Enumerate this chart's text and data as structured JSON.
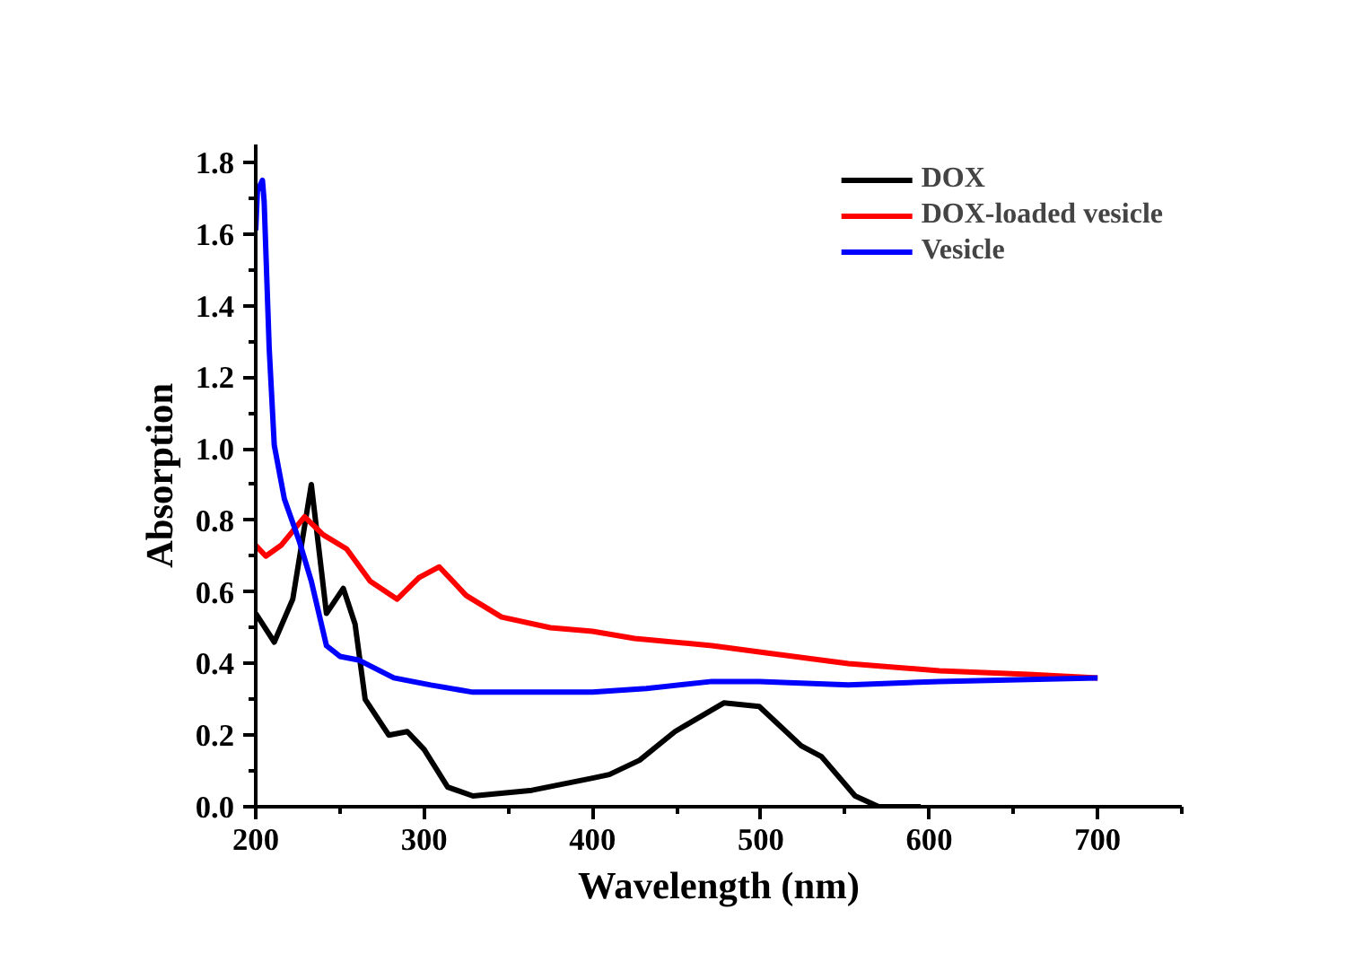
{
  "chart_data": {
    "type": "line",
    "xlabel": "Wavelength (nm)",
    "ylabel": "Absorption",
    "xlim": [
      200,
      750
    ],
    "ylim": [
      0,
      1.85
    ],
    "xticks": [
      200,
      {
        "value": 250,
        "label": null
      },
      300,
      {
        "value": 350,
        "label": null
      },
      400,
      {
        "value": 450,
        "label": null
      },
      500,
      {
        "value": 550,
        "label": null
      },
      600,
      {
        "value": 650,
        "label": null
      },
      700,
      {
        "value": 750,
        "label": null
      }
    ],
    "yticks": [
      {
        "value": 0,
        "label": "0.0"
      },
      {
        "value": 0.1,
        "label": null
      },
      0.2,
      {
        "value": 0.3,
        "label": null
      },
      0.4,
      {
        "value": 0.5,
        "label": null
      },
      0.6,
      {
        "value": 0.7,
        "label": null
      },
      0.8,
      {
        "value": 0.9,
        "label": null
      },
      {
        "value": 1.0,
        "label": "1.0"
      },
      {
        "value": 1.1,
        "label": null
      },
      1.2,
      {
        "value": 1.3,
        "label": null
      },
      1.4,
      {
        "value": 1.5,
        "label": null
      },
      1.6,
      {
        "value": 1.7,
        "label": null
      },
      1.8
    ],
    "legend": "top right",
    "marker": "none",
    "line_style": "solid",
    "series": [
      {
        "name": "DOX",
        "color": "#000000",
        "x": [
          200,
          211,
          222,
          233,
          242,
          252,
          259,
          265,
          279,
          290,
          300,
          314,
          329,
          364,
          400,
          410,
          428,
          449,
          478,
          499,
          524,
          536,
          556,
          570,
          595
        ],
        "values": [
          0.54,
          0.46,
          0.58,
          0.9,
          0.54,
          0.61,
          0.51,
          0.3,
          0.2,
          0.21,
          0.16,
          0.055,
          0.03,
          0.046,
          0.08,
          0.09,
          0.13,
          0.21,
          0.29,
          0.28,
          0.17,
          0.14,
          0.03,
          0,
          0
        ]
      },
      {
        "name": "DOX-loaded vesicle",
        "color": "#ff0000",
        "x": [
          200,
          206,
          215,
          229,
          240,
          254,
          268,
          284,
          297,
          309,
          325,
          346,
          375,
          400,
          425,
          471,
          503,
          552,
          606,
          659,
          700
        ],
        "values": [
          0.73,
          0.7,
          0.73,
          0.81,
          0.76,
          0.72,
          0.63,
          0.58,
          0.64,
          0.67,
          0.59,
          0.53,
          0.5,
          0.49,
          0.47,
          0.45,
          0.43,
          0.4,
          0.38,
          0.37,
          0.36
        ]
      },
      {
        "name": "Vesicle",
        "color": "#0000ff",
        "x": [
          200,
          201,
          204,
          205,
          208,
          211,
          217,
          226,
          233,
          242,
          250,
          261,
          282,
          304,
          329,
          364,
          400,
          432,
          471,
          499,
          552,
          606,
          700
        ],
        "values": [
          1.61,
          1.72,
          1.75,
          1.69,
          1.28,
          1.01,
          0.86,
          0.74,
          0.63,
          0.45,
          0.42,
          0.41,
          0.36,
          0.34,
          0.32,
          0.32,
          0.32,
          0.33,
          0.35,
          0.35,
          0.34,
          0.35,
          0.36
        ]
      }
    ]
  }
}
